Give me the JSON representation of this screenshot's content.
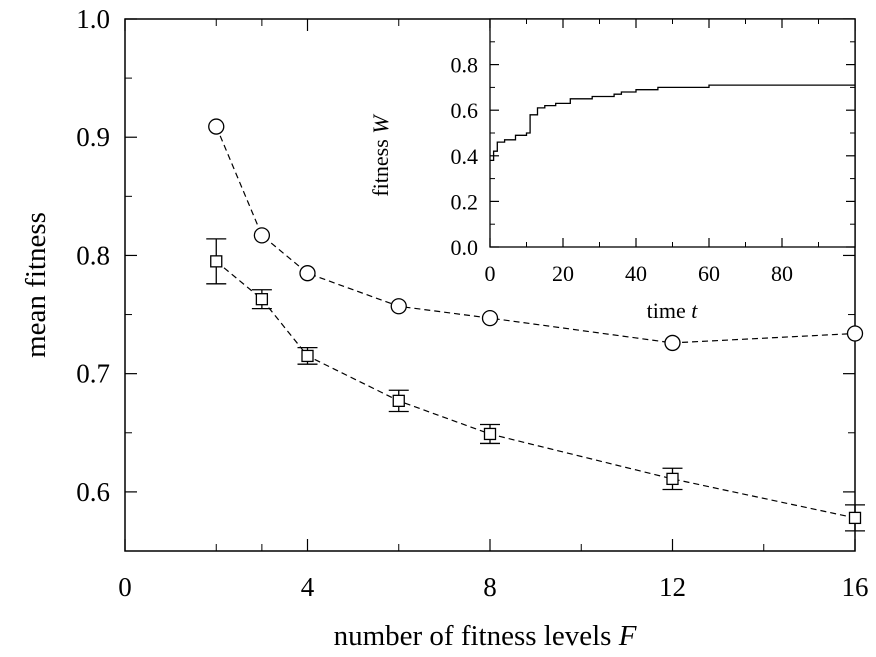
{
  "chart_data": [
    {
      "type": "line",
      "xlabel": "number of fitness levels",
      "xlabel_var": "F",
      "ylabel": "mean fitness",
      "xlim": [
        0,
        16
      ],
      "ylim": [
        0.55,
        1.0
      ],
      "xticks": [
        0,
        4,
        8,
        12,
        16
      ],
      "xtick_labels": [
        "0",
        "4",
        "8",
        "12",
        "16"
      ],
      "xminor": [
        2,
        3,
        6,
        10,
        14
      ],
      "yticks": [
        0.6,
        0.7,
        0.8,
        0.9,
        1.0
      ],
      "ytick_labels": [
        "0.6",
        "0.7",
        "0.8",
        "0.9",
        "1.0"
      ],
      "yminor": [
        0.55,
        0.65,
        0.75,
        0.85,
        0.95
      ],
      "grid": false,
      "series": [
        {
          "marker": "circle",
          "line": "dashed",
          "x": [
            2,
            3,
            4,
            6,
            8,
            12,
            16
          ],
          "y": [
            0.909,
            0.817,
            0.785,
            0.757,
            0.747,
            0.726,
            0.734
          ]
        },
        {
          "marker": "square",
          "line": "dashed",
          "x": [
            2,
            3,
            4,
            6,
            8,
            12,
            16
          ],
          "y": [
            0.795,
            0.763,
            0.715,
            0.677,
            0.649,
            0.611,
            0.578
          ],
          "yerr": [
            0.019,
            0.008,
            0.007,
            0.009,
            0.008,
            0.009,
            0.011
          ]
        }
      ]
    },
    {
      "type": "line",
      "placement": "inset-top-right",
      "xlabel": "time",
      "xlabel_var": "t",
      "ylabel": "fitness",
      "ylabel_var": "W",
      "xlim": [
        0,
        100
      ],
      "ylim": [
        0.0,
        1.0
      ],
      "xticks": [
        0,
        20,
        40,
        60,
        80
      ],
      "xtick_labels": [
        "0",
        "20",
        "40",
        "60",
        "80"
      ],
      "xminor": [
        10,
        30,
        50,
        70,
        90
      ],
      "yticks": [
        0.0,
        0.2,
        0.4,
        0.6,
        0.8
      ],
      "ytick_labels": [
        "0.0",
        "0.2",
        "0.4",
        "0.6",
        "0.8"
      ],
      "yminor": [
        0.1,
        0.3,
        0.5,
        0.7,
        0.9
      ],
      "grid": false,
      "series": [
        {
          "line": "solid-step",
          "x": [
            0,
            1,
            2,
            4,
            7,
            10,
            11,
            13,
            15,
            18,
            22,
            28,
            34,
            36,
            40,
            46,
            52,
            60,
            64,
            70,
            80,
            90,
            100
          ],
          "y": [
            0.38,
            0.42,
            0.46,
            0.47,
            0.49,
            0.5,
            0.58,
            0.61,
            0.62,
            0.63,
            0.65,
            0.66,
            0.67,
            0.68,
            0.69,
            0.7,
            0.7,
            0.71,
            0.71,
            0.71,
            0.71,
            0.71,
            0.71
          ]
        }
      ]
    }
  ]
}
